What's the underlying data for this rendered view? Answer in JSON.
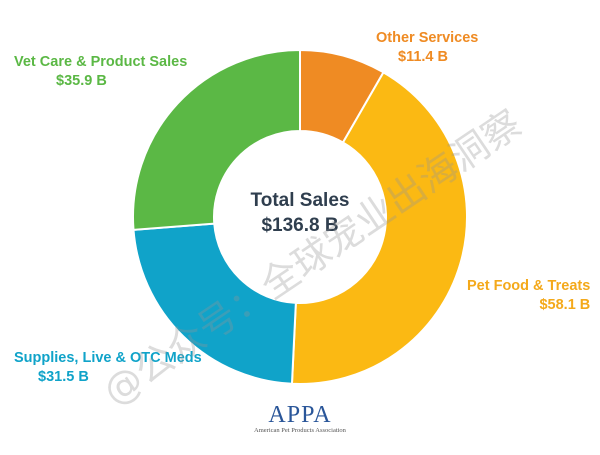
{
  "chart_data": {
    "type": "pie",
    "center_title": "Total Sales",
    "center_value": "$136.8 B",
    "categories": [
      "Other Services",
      "Pet Food & Treats",
      "Supplies, Live & OTC Meds",
      "Vet Care & Product Sales"
    ],
    "values": [
      11.4,
      58.1,
      31.5,
      35.9
    ],
    "value_labels": [
      "$11.4 B",
      "$58.1 B",
      "$31.5 B",
      "$35.9 B"
    ],
    "colors": [
      "#ef8b23",
      "#fbb913",
      "#10a3c9",
      "#5bb845"
    ],
    "donut": true
  },
  "logo": {
    "text": "APPA",
    "subtitle": "American Pet Products Association"
  },
  "watermark": "@公众号：全球宠业出海洞察"
}
